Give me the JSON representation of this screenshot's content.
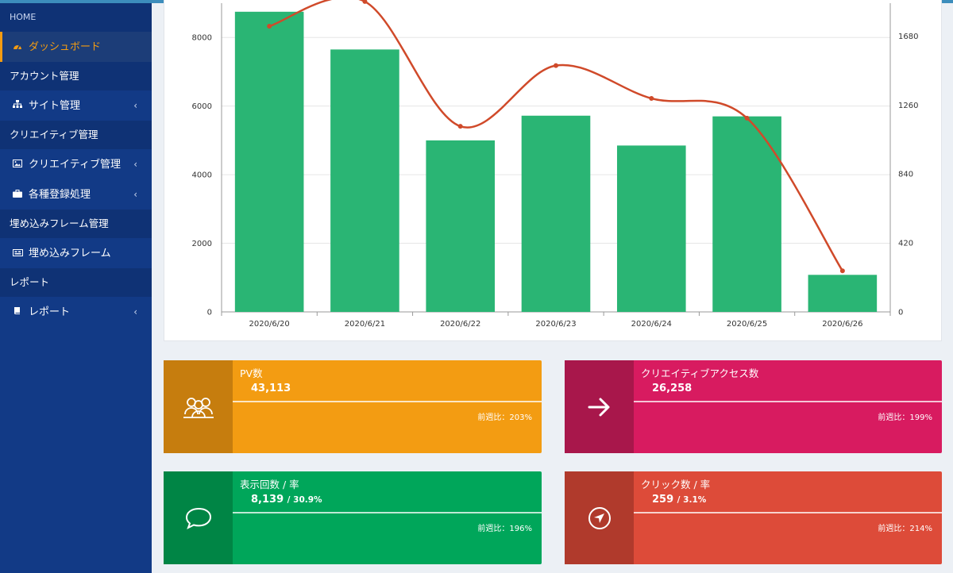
{
  "sidebar": {
    "header": "HOME",
    "items": [
      {
        "type": "item",
        "label": "ダッシュボード",
        "icon": "dashboard-icon",
        "active": true
      },
      {
        "type": "section",
        "label": "アカウント管理"
      },
      {
        "type": "item",
        "label": "サイト管理",
        "icon": "sitemap-icon",
        "chevron": true
      },
      {
        "type": "section",
        "label": "クリエイティブ管理"
      },
      {
        "type": "item",
        "label": "クリエイティブ管理",
        "icon": "image-icon",
        "chevron": true
      },
      {
        "type": "item",
        "label": "各種登録処理",
        "icon": "briefcase-icon",
        "chevron": true
      },
      {
        "type": "section",
        "label": "埋め込みフレーム管理"
      },
      {
        "type": "item",
        "label": "埋め込みフレーム",
        "icon": "frame-icon"
      },
      {
        "type": "section",
        "label": "レポート"
      },
      {
        "type": "item",
        "label": "レポート",
        "icon": "book-icon",
        "chevron": true
      }
    ]
  },
  "chart_data": {
    "type": "bar",
    "categories": [
      "2020/6/20",
      "2020/6/21",
      "2020/6/22",
      "2020/6/23",
      "2020/6/24",
      "2020/6/25",
      "2020/6/26"
    ],
    "series": [
      {
        "type": "bar",
        "axis": "left",
        "color": "#2ab574",
        "values": [
          8750,
          7650,
          5000,
          5720,
          4850,
          5700,
          1080
        ]
      },
      {
        "type": "line",
        "axis": "right",
        "color": "#d04a2a",
        "values": [
          1740,
          1890,
          1130,
          1500,
          1300,
          1180,
          250
        ]
      }
    ],
    "ylim_left": [
      0,
      9000
    ],
    "yticks_left": [
      "0",
      "2000",
      "4000",
      "6000",
      "8000"
    ],
    "ylim_right": [
      0,
      1880
    ],
    "yticks_right": [
      "0",
      "420",
      "840",
      "1260",
      "1680"
    ],
    "grid": true
  },
  "cards": [
    {
      "title": "PV数",
      "value": "43,113",
      "rate": "",
      "desc": "前週比：203%",
      "bg": "#f39c12",
      "icon_bg": "#c67d0e",
      "icon": "users-icon"
    },
    {
      "title": "クリエイティブアクセス数",
      "value": "26,258",
      "rate": "",
      "desc": "前週比：199%",
      "bg": "#d81b60",
      "icon_bg": "#a8174b",
      "icon": "arrow-right-icon"
    },
    {
      "title": "表示回数 / 率",
      "value": "8,139",
      "rate": "/ 30.9%",
      "desc": "前週比：196%",
      "bg": "#00a65a",
      "icon_bg": "#008545",
      "icon": "comment-icon"
    },
    {
      "title": "クリック数 / 率",
      "value": "259",
      "rate": "/ 3.1%",
      "desc": "前週比：214%",
      "bg": "#dd4b39",
      "icon_bg": "#b03a2c",
      "icon": "location-arrow-icon"
    }
  ]
}
